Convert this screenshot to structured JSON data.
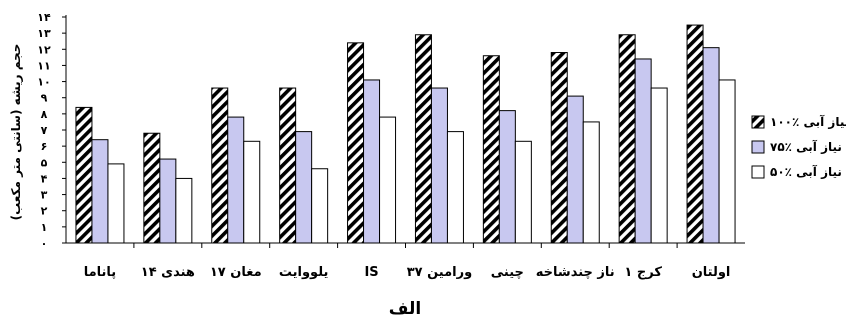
{
  "chart_data": {
    "type": "bar",
    "panel_label": "الف",
    "ylabel": "حجم ریشه (سانتی متر مکعب)",
    "ylim": [
      0,
      14
    ],
    "y_ticks": [
      "۰",
      "۱",
      "۲",
      "۳",
      "۴",
      "۵",
      "۶",
      "۷",
      "۸",
      "۹",
      "۱۰",
      "۱۱",
      "۱۲",
      "۱۳",
      "۱۴"
    ],
    "categories": [
      "پاناما",
      "هندی ۱۴",
      "مغان ۱۷",
      "یلووایت",
      "IS",
      "ورامین ۳۷",
      "چینی",
      "ناز چندشاخه",
      "کرج ۱",
      "اولتان"
    ],
    "series": [
      {
        "name": "۱۰۰٪ نیاز آبی",
        "color": "#000000",
        "pattern": "diagonal-hatch",
        "values": [
          8.4,
          6.8,
          9.6,
          9.6,
          12.4,
          12.9,
          11.6,
          11.8,
          12.9,
          13.5
        ]
      },
      {
        "name": "۷۵٪ نیاز آبی",
        "color": "#c8c8f0",
        "pattern": "solid",
        "values": [
          6.4,
          5.2,
          7.8,
          6.9,
          10.1,
          9.6,
          8.2,
          9.1,
          11.4,
          12.1
        ]
      },
      {
        "name": "۵۰٪ نیاز آبی",
        "color": "#ffffff",
        "pattern": "solid",
        "values": [
          4.9,
          4.0,
          6.3,
          4.6,
          7.8,
          6.9,
          6.3,
          7.5,
          9.6,
          10.1
        ]
      }
    ],
    "legend_position": "right",
    "grid": false
  }
}
